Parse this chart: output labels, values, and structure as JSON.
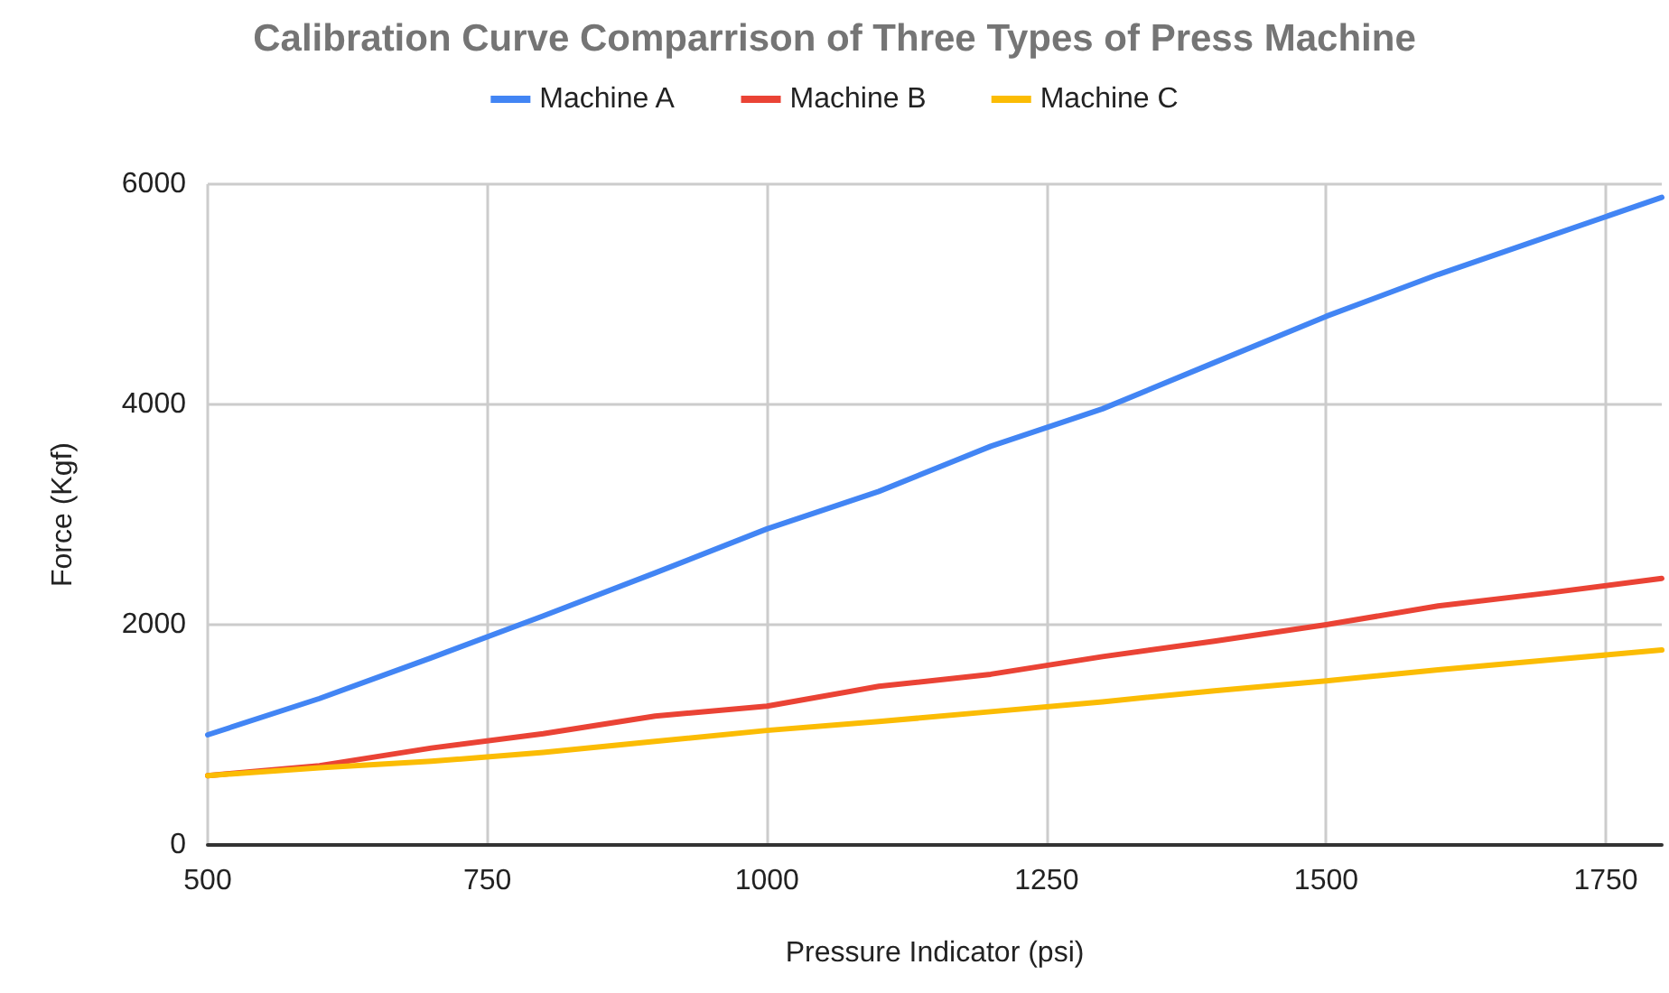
{
  "chart_data": {
    "type": "line",
    "title": "Calibration Curve Comparrison of Three Types of Press Machine",
    "xlabel": "Pressure Indicator (psi)",
    "ylabel": "Force (Kgf)",
    "x": [
      500,
      600,
      700,
      800,
      900,
      1000,
      1100,
      1200,
      1300,
      1400,
      1500,
      1600,
      1700,
      1800
    ],
    "series": [
      {
        "name": "Machine A",
        "color": "#4285f4",
        "values": [
          1000,
          1330,
          1700,
          2080,
          2470,
          2870,
          3210,
          3620,
          3960,
          4380,
          4800,
          5180,
          5530,
          5880
        ]
      },
      {
        "name": "Machine B",
        "color": "#ea4335",
        "values": [
          630,
          720,
          880,
          1010,
          1170,
          1260,
          1440,
          1550,
          1710,
          1850,
          2000,
          2170,
          2290,
          2420
        ]
      },
      {
        "name": "Machine C",
        "color": "#fbbc04",
        "values": [
          630,
          700,
          760,
          840,
          940,
          1040,
          1120,
          1210,
          1300,
          1400,
          1490,
          1590,
          1680,
          1770
        ]
      }
    ],
    "xlim": [
      500,
      1800
    ],
    "xticks": [
      500,
      750,
      1000,
      1250,
      1500,
      1750
    ],
    "ylim": [
      0,
      6000
    ],
    "yticks": [
      0,
      2000,
      4000,
      6000
    ],
    "grid": true,
    "legend": "top",
    "marker": "none",
    "line_style": "solid"
  }
}
